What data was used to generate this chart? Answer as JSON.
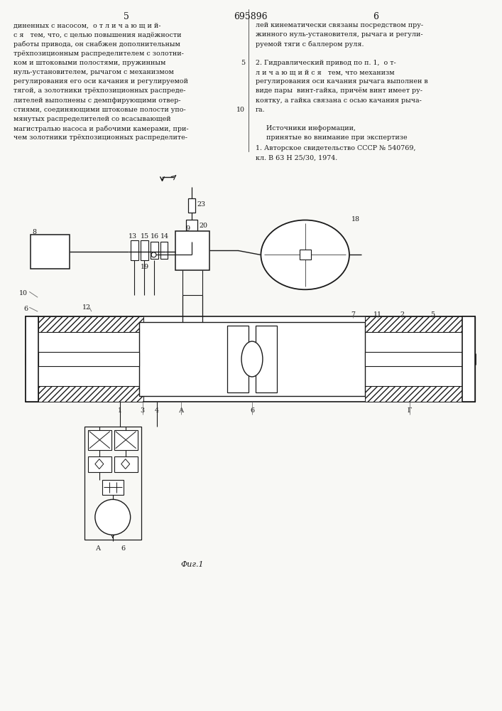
{
  "page_width": 7.07,
  "page_height": 10.0,
  "bg_color": "#f8f8f5",
  "text_color": "#1a1a1a",
  "line_color": "#1a1a1a",
  "page_number_left": "5",
  "page_number_center": "695896",
  "page_number_right": "6",
  "left_col_lines": [
    "диненных с насосом,  о т л и ч а ю щ и й-",
    "с я   тем, что, с целью повышения надёжности",
    "работы привода, он снабжен дополнительным",
    "трёхпозиционным распределителем с золотни-",
    "ком и штоковыми полостями, пружинным",
    "нуль-установителем, рычагом с механизмом",
    "регулирования его оси качания и регулируемой",
    "тягой, а золотники трёхпозиционных распреде-",
    "лителей выполнены с демпфирующими отвер-",
    "стиями, соединяющими штоковые полости упо-",
    "мянутых распределителей со всасывающей",
    "магистралью насоса и рабочими камерами, при-",
    "чем золотники трёхпозиционных распределите-"
  ],
  "right_col_lines": [
    "лей кинематически связаны посредством пру-",
    "жинного нуль-установителя, рычага и регули-",
    "руемой тяги с баллером руля.",
    "",
    "2. Гидравлический привод по п. 1,  о т-",
    "л и ч а ю щ и й с я   тем, что механизм",
    "регулирования оси качания рычага выполнен в",
    "виде пары  винт-гайка, причём винт имеет ру-",
    "коятку, а гайка связана с осью качания рыча-",
    "га.",
    "",
    "     Источники информации,",
    "     принятые во внимание при экспертизе"
  ],
  "ref_lines": [
    "1. Авторское свидетельство СССР № 540769,",
    "кл. В 63 Н 25/30, 1974."
  ],
  "fig_label": "Фиг.1",
  "col_marker_5_row": 4,
  "col_marker_10_row": 9
}
